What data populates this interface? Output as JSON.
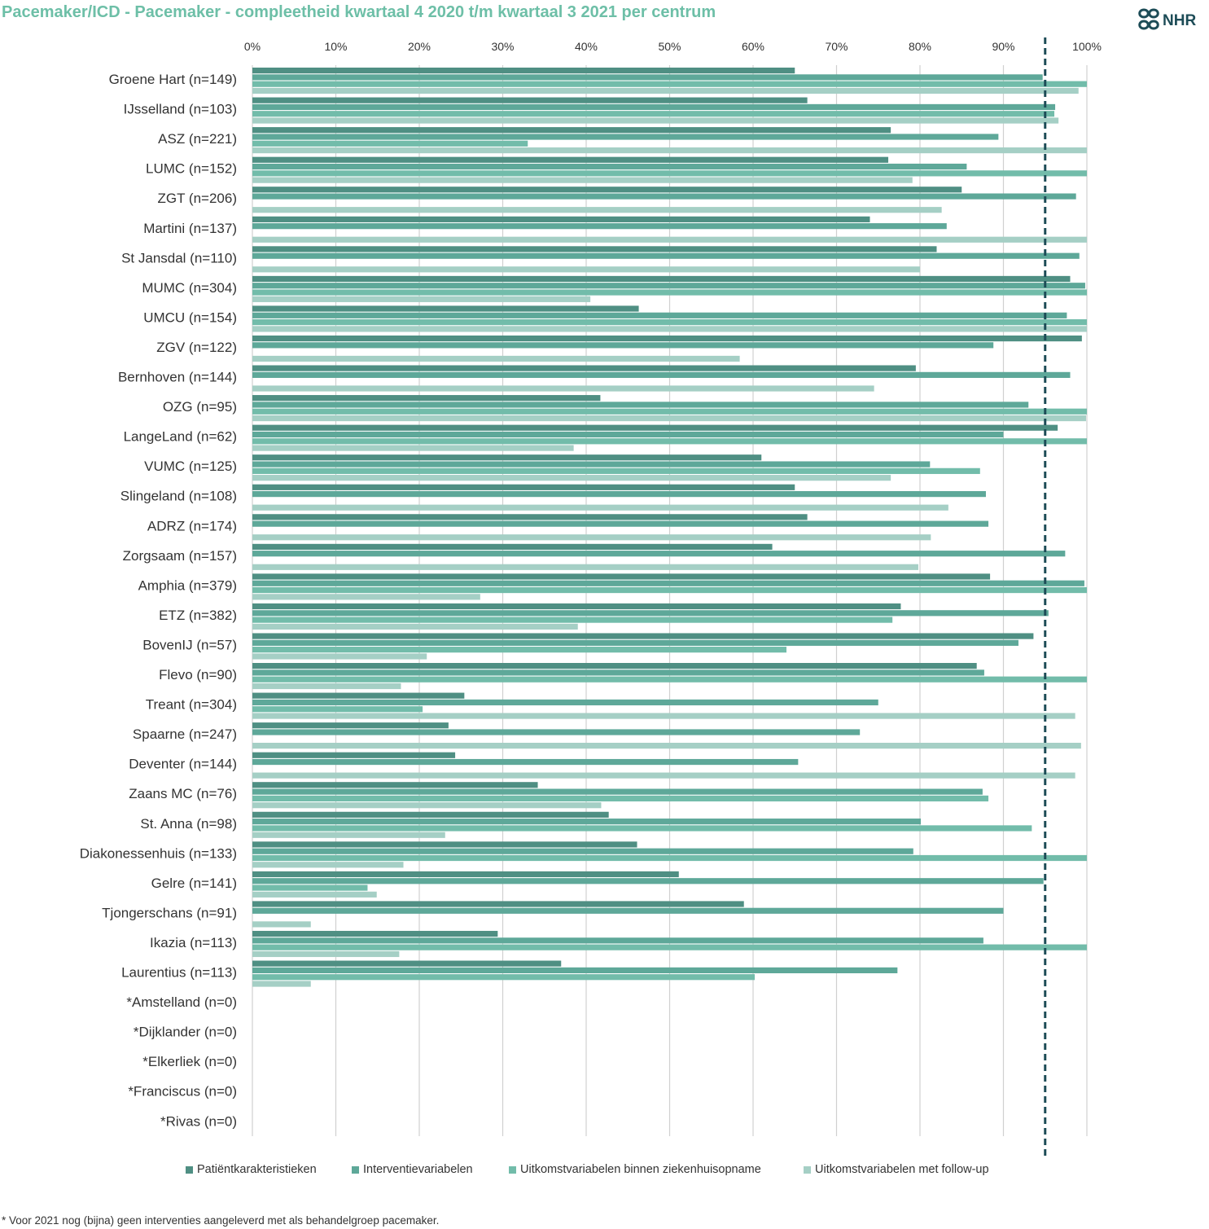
{
  "title": "Pacemaker/ICD - Pacemaker - compleetheid kwartaal 4 2020 t/m kwartaal 3 2021 per centrum",
  "logo_text": "NHR",
  "footnote": "* Voor 2021 nog (bijna) geen interventies aangeleverd met als behandelgroep pacemaker.",
  "colors": {
    "title": "#6dbfa7",
    "series": [
      "#4f8f83",
      "#5ea899",
      "#72bcaa",
      "#a5cfc5"
    ],
    "reference_line": "#1d4c57",
    "grid": "#d0d0d0",
    "logo": "#1d4c57"
  },
  "chart_data": {
    "type": "bar",
    "orientation": "horizontal",
    "title": "Pacemaker/ICD - Pacemaker - compleetheid kwartaal 4 2020 t/m kwartaal 3 2021 per centrum",
    "xlim": [
      0,
      100
    ],
    "x_ticks": [
      "0%",
      "10%",
      "20%",
      "30%",
      "40%",
      "50%",
      "60%",
      "70%",
      "80%",
      "90%",
      "100%"
    ],
    "x_axis_position": "top",
    "grid": true,
    "legend_position": "bottom",
    "reference_line": 95,
    "categories": [
      "Groene Hart (n=149)",
      "IJsselland (n=103)",
      "ASZ (n=221)",
      "LUMC (n=152)",
      "ZGT (n=206)",
      "Martini (n=137)",
      "St Jansdal (n=110)",
      "MUMC (n=304)",
      "UMCU (n=154)",
      "ZGV (n=122)",
      "Bernhoven (n=144)",
      "OZG (n=95)",
      "LangeLand (n=62)",
      "VUMC (n=125)",
      "Slingeland (n=108)",
      "ADRZ (n=174)",
      "Zorgsaam (n=157)",
      "Amphia (n=379)",
      "ETZ (n=382)",
      "BovenIJ (n=57)",
      "Flevo (n=90)",
      "Treant (n=304)",
      "Spaarne (n=247)",
      "Deventer (n=144)",
      "Zaans MC (n=76)",
      "St. Anna (n=98)",
      "Diakonessenhuis (n=133)",
      "Gelre (n=141)",
      "Tjongerschans (n=91)",
      "Ikazia (n=113)",
      "Laurentius (n=113)",
      "*Amstelland (n=0)",
      "*Dijklander (n=0)",
      "*Elkerliek (n=0)",
      "*Franciscus (n=0)",
      "*Rivas (n=0)"
    ],
    "series": [
      {
        "name": "Patiëntkarakteristieken",
        "values": [
          65,
          66.5,
          76.5,
          76.2,
          85,
          74,
          82,
          98,
          46.3,
          99.4,
          79.5,
          41.7,
          96.5,
          61,
          65,
          66.5,
          62.3,
          88.4,
          77.7,
          93.6,
          86.8,
          25.4,
          23.5,
          24.3,
          34.2,
          42.7,
          46.1,
          51.1,
          58.9,
          29.4,
          37,
          0,
          0,
          0,
          0,
          0
        ]
      },
      {
        "name": "Interventievariabelen",
        "values": [
          94.7,
          96.2,
          89.4,
          85.6,
          98.7,
          83.2,
          99.1,
          99.8,
          97.6,
          88.8,
          98,
          93,
          90,
          81.2,
          87.9,
          88.2,
          97.4,
          99.7,
          95.4,
          91.8,
          87.7,
          75,
          72.8,
          65.4,
          87.5,
          80.1,
          79.2,
          94.8,
          90,
          87.6,
          77.3,
          0,
          0,
          0,
          0,
          0
        ]
      },
      {
        "name": "Uitkomstvariabelen binnen ziekenhuisopname",
        "values": [
          100,
          96.1,
          33,
          100,
          0,
          0,
          0,
          100,
          100,
          0,
          0,
          100,
          100,
          87.2,
          0,
          0,
          0,
          100,
          76.7,
          64,
          100,
          20.4,
          0,
          0,
          88.2,
          93.4,
          100,
          13.8,
          0,
          100,
          60.2,
          0,
          0,
          0,
          0,
          0
        ]
      },
      {
        "name": "Uitkomstvariabelen met follow-up",
        "values": [
          99,
          96.6,
          100,
          79.1,
          82.6,
          100,
          80,
          40.5,
          100,
          58.4,
          74.5,
          99.9,
          38.5,
          76.5,
          83.4,
          81.3,
          79.8,
          27.3,
          39,
          20.9,
          17.8,
          98.6,
          99.3,
          98.6,
          41.8,
          23.1,
          18.1,
          14.9,
          7,
          17.6,
          7,
          0,
          0,
          0,
          0,
          0
        ]
      }
    ]
  }
}
